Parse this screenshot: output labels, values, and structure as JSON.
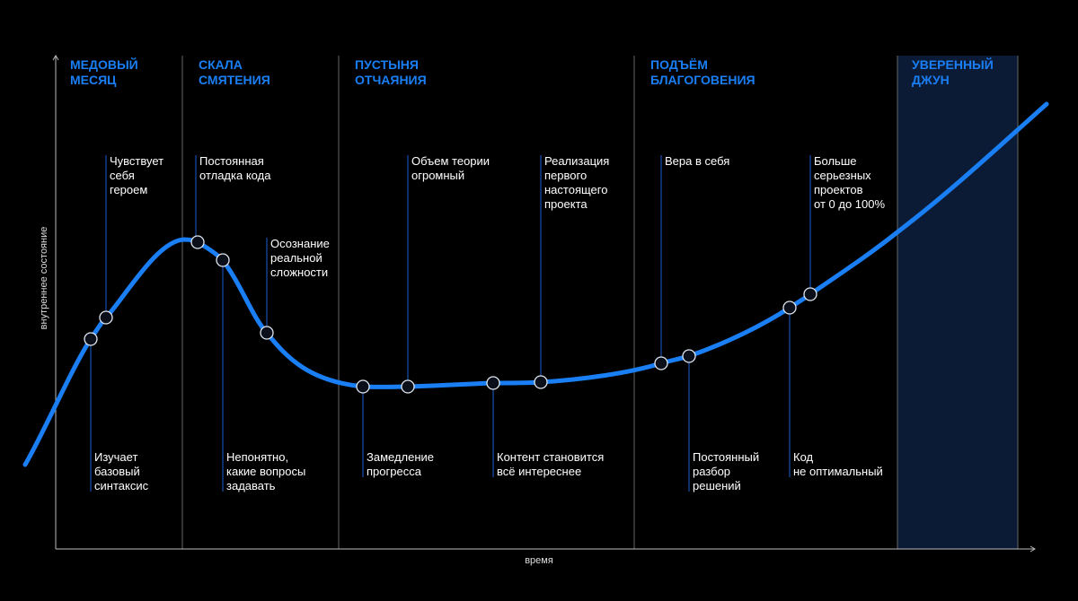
{
  "axes": {
    "y_label": "внутреннее состояние",
    "x_label": "время"
  },
  "stages": [
    {
      "title": [
        "МЕДОВЫЙ",
        "МЕСЯЦ"
      ]
    },
    {
      "title": [
        "СКАЛА",
        "СМЯТЕНИЯ"
      ]
    },
    {
      "title": [
        "ПУСТЫНЯ",
        "ОТЧАЯНИЯ"
      ]
    },
    {
      "title": [
        "ПОДЪЁМ",
        "БЛАГОГОВЕНИЯ"
      ]
    },
    {
      "title": [
        "УВЕРЕННЫЙ",
        "ДЖУН"
      ]
    }
  ],
  "annotations": [
    {
      "lines": [
        "Изучает",
        "базовый",
        "синтаксис"
      ]
    },
    {
      "lines": [
        "Чувствует",
        "себя",
        "героем"
      ]
    },
    {
      "lines": [
        "Постоянная",
        "отладка кода"
      ]
    },
    {
      "lines": [
        "Непонятно,",
        "какие вопросы",
        "задавать"
      ]
    },
    {
      "lines": [
        "Осознание",
        "реальной",
        "сложности"
      ]
    },
    {
      "lines": [
        "Замедление",
        "прогресса"
      ]
    },
    {
      "lines": [
        "Объем теории",
        "огромный"
      ]
    },
    {
      "lines": [
        "Контент становится",
        "всё интереснее"
      ]
    },
    {
      "lines": [
        "Реализация",
        "первого",
        "настоящего",
        "проекта"
      ]
    },
    {
      "lines": [
        "Вера в себя"
      ]
    },
    {
      "lines": [
        "Постоянный",
        "разбор",
        "решений"
      ]
    },
    {
      "lines": [
        "Код",
        "не оптимальный"
      ]
    },
    {
      "lines": [
        "Больше",
        "серьезных",
        "проектов",
        "от 0 до 100%"
      ]
    }
  ]
}
